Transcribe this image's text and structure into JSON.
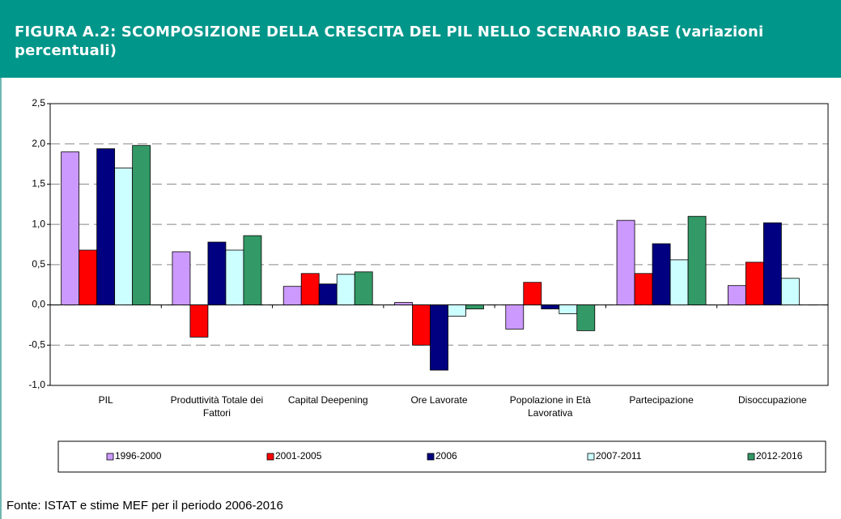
{
  "chart_data": {
    "type": "bar",
    "title": "FIGURA A.2: SCOMPOSIZIONE DELLA CRESCITA DEL PIL NELLO SCENARIO BASE (variazioni percentuali)",
    "source": "Fonte: ISTAT e stime MEF per il periodo 2006-2016",
    "categories": [
      "PIL",
      "Produttività Totale dei Fattori",
      "Capital Deepening",
      "Ore Lavorate",
      "Popolazione in Età Lavorativa",
      "Partecipazione",
      "Disoccupazione"
    ],
    "series": [
      {
        "name": "1996-2000",
        "color": "#cc99ff",
        "values": [
          1.9,
          0.66,
          0.23,
          0.03,
          -0.3,
          1.05,
          0.24
        ]
      },
      {
        "name": "2001-2005",
        "color": "#ff0000",
        "values": [
          0.68,
          -0.4,
          0.39,
          -0.5,
          0.28,
          0.39,
          0.53
        ]
      },
      {
        "name": "2006",
        "color": "#000080",
        "values": [
          1.94,
          0.78,
          0.26,
          -0.81,
          -0.05,
          0.76,
          1.02
        ]
      },
      {
        "name": "2007-2011",
        "color": "#ccffff",
        "values": [
          1.7,
          0.68,
          0.38,
          -0.14,
          -0.11,
          0.56,
          0.33
        ]
      },
      {
        "name": "2012-2016",
        "color": "#339966",
        "values": [
          1.98,
          0.86,
          0.41,
          -0.05,
          -0.32,
          1.1,
          null
        ]
      }
    ],
    "ylim": [
      -1.0,
      2.5
    ],
    "yticks": [
      {
        "value": -1.0,
        "label": "-1,0"
      },
      {
        "value": -0.5,
        "label": "-0,5"
      },
      {
        "value": 0.0,
        "label": "0,0"
      },
      {
        "value": 0.5,
        "label": "0,5"
      },
      {
        "value": 1.0,
        "label": "1,0"
      },
      {
        "value": 1.5,
        "label": "1,5"
      },
      {
        "value": 2.0,
        "label": "2,0"
      },
      {
        "value": 2.5,
        "label": "2,5"
      }
    ],
    "grid": true
  }
}
